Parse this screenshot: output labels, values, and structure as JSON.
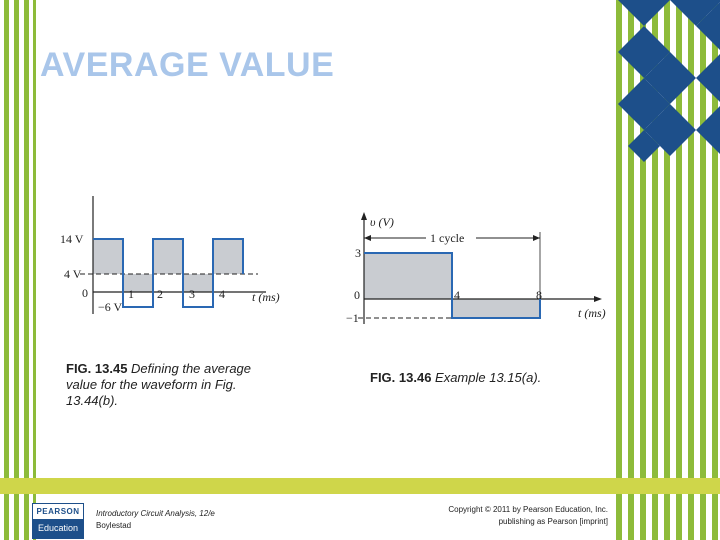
{
  "slide": {
    "title": "AVERAGE VALUE",
    "accent_color": "#a9c6ea",
    "stripe_colors": [
      "#8dbb3a",
      "#ffffff",
      "#1d4f8a"
    ]
  },
  "figures": [
    {
      "caption_label": "FIG. 13.45",
      "caption_text": " Defining the average value for the waveform in Fig. 13.44(b).",
      "labels": {
        "y_high": "14 V",
        "y_avg": "4 V",
        "y_low": "−6 V",
        "origin": "0",
        "t1": "1",
        "t2": "2",
        "t3": "3",
        "t4": "4",
        "xlabel": "t (ms)"
      }
    },
    {
      "caption_label": "FIG. 13.46",
      "caption_text": " Example 13.15(a).",
      "labels": {
        "ylabel": "υ (V)",
        "y_high": "3",
        "y_zero": "0",
        "y_low": "−1",
        "t4": "4",
        "t8": "8",
        "xlabel": "t (ms)",
        "cycle": "1 cycle"
      }
    }
  ],
  "footer": {
    "logo_top": "PEARSON",
    "logo_bottom": "Education",
    "book_title": "Introductory Circuit Analysis, 12/e",
    "author": "Boylestad",
    "copyright_line1": "Copyright © 2011 by Pearson Education, Inc.",
    "copyright_line2": "publishing as Pearson [imprint]"
  }
}
